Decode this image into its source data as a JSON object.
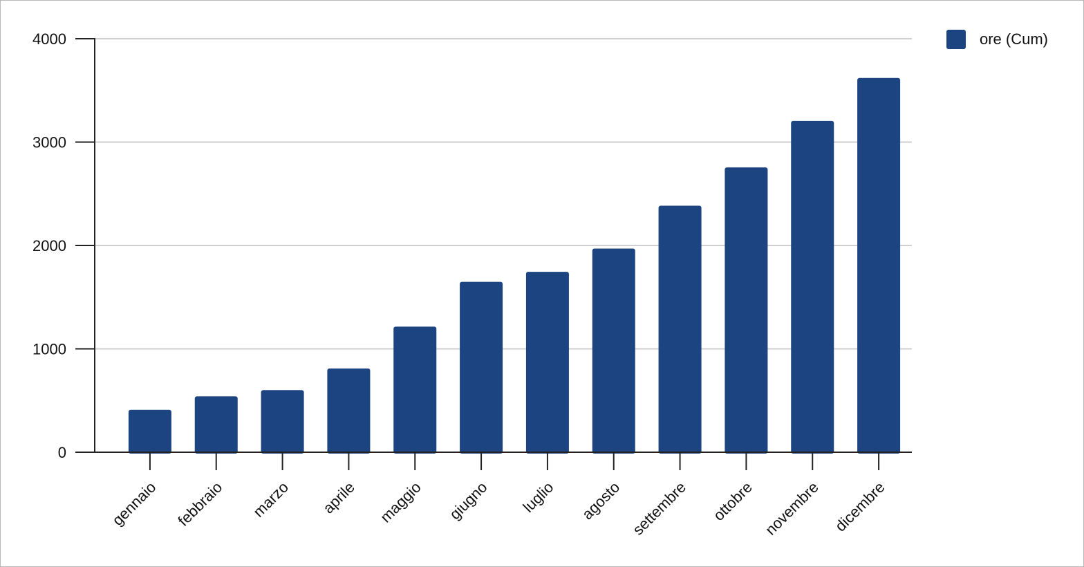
{
  "chart_data": {
    "type": "bar",
    "categories": [
      "gennaio",
      "febbraio",
      "marzo",
      "aprile",
      "maggio",
      "giugno",
      "luglio",
      "agosto",
      "settembre",
      "ottobre",
      "novembre",
      "dicembre"
    ],
    "series": [
      {
        "name": "ore (Cum)",
        "color": "#1c4481",
        "values": [
          410,
          540,
          600,
          810,
          1215,
          1648,
          1745,
          1970,
          2385,
          2755,
          3205,
          3620
        ]
      }
    ],
    "yticks": [
      "0",
      "1000",
      "2000",
      "3000",
      "4000"
    ],
    "ylim": [
      0,
      4000
    ],
    "title": "",
    "xlabel": "",
    "ylabel": "",
    "grid": true,
    "legend_position": "top-right"
  }
}
